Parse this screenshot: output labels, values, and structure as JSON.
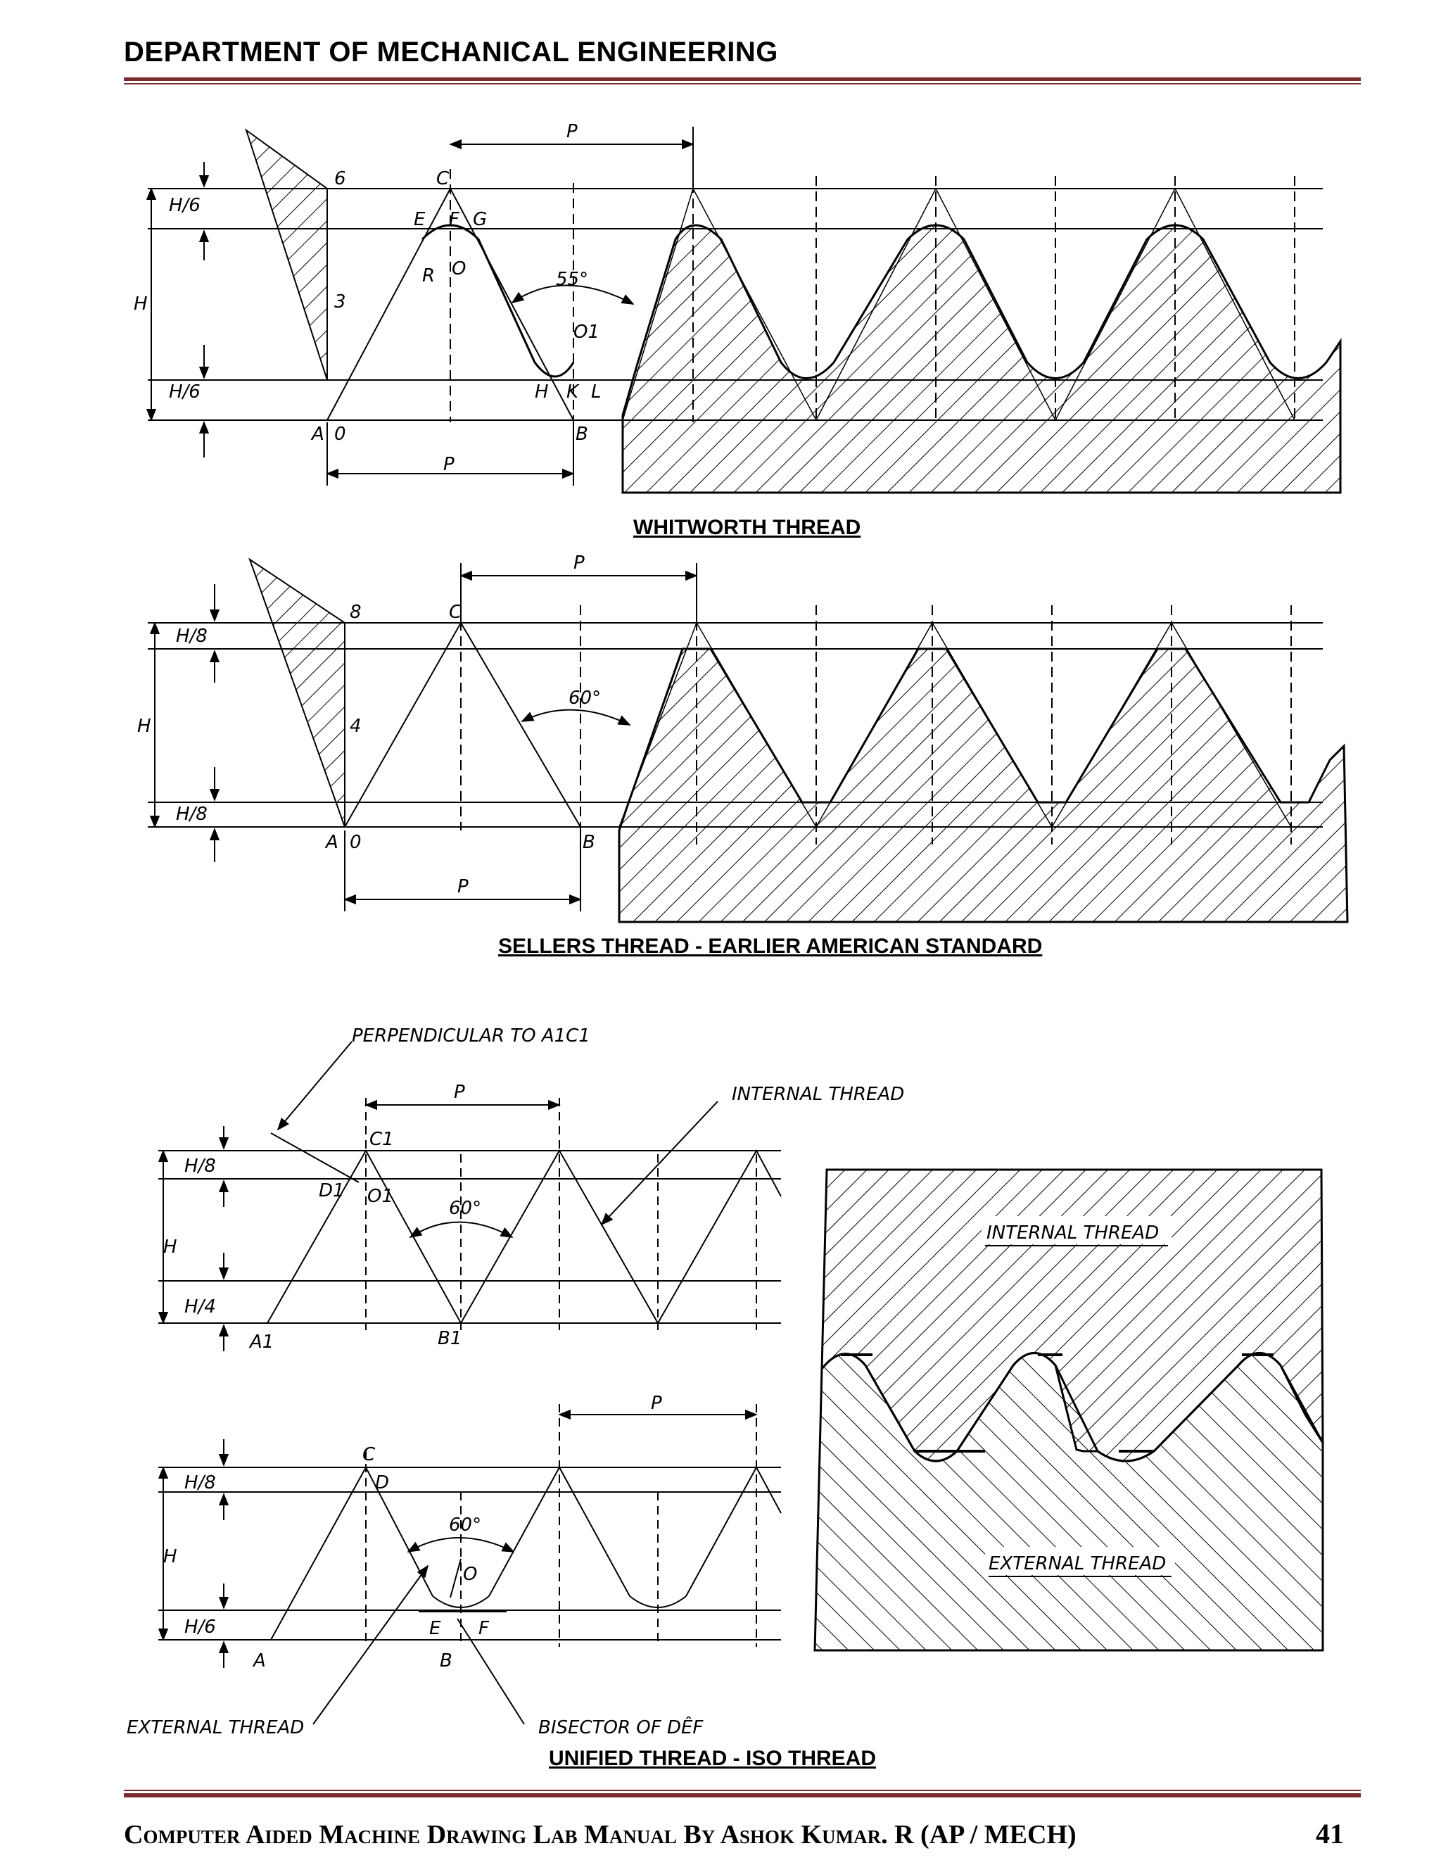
{
  "header": {
    "title": "DEPARTMENT OF MECHANICAL ENGINEERING"
  },
  "footer": {
    "text": "Computer Aided Machine Drawing Lab Manual By Ashok Kumar. R (AP / MECH)",
    "page_number": "41"
  },
  "colors": {
    "accent": "#7a2b2b"
  },
  "figures": {
    "whitworth": {
      "caption": "WHITWORTH THREAD",
      "labels": {
        "pitch_top": "P",
        "pitch_bottom": "P",
        "height": "H",
        "h6_top": "H/6",
        "h6_bottom": "H/6",
        "angle": "55°",
        "pt_c": "C",
        "pt_e": "E",
        "pt_f": "F",
        "pt_g": "G",
        "pt_o": "O",
        "pt_r": "R",
        "pt_o1": "O1",
        "pt_h": "H",
        "pt_k": "K",
        "pt_l": "L",
        "pt_a": "A",
        "pt_zero": "0",
        "pt_b": "B",
        "div_6": "6",
        "div_3": "3"
      }
    },
    "sellers": {
      "caption": "SELLERS THREAD - EARLIER AMERICAN STANDARD",
      "labels": {
        "pitch_top": "P",
        "pitch_bottom": "P",
        "height": "H",
        "h8_top": "H/8",
        "h8_bottom": "H/8",
        "angle": "60°",
        "pt_c": "C",
        "pt_a": "A",
        "pt_zero": "0",
        "pt_b": "B",
        "div_8": "8",
        "div_4": "4"
      }
    },
    "unified": {
      "caption": "UNIFIED THREAD - ISO THREAD",
      "labels": {
        "perpendicular": "PERPENDICULAR TO A1C1",
        "internal_thread": "INTERNAL THREAD",
        "internal_thread_section": "INTERNAL THREAD",
        "external_thread_section": "EXTERNAL THREAD",
        "external_thread": "EXTERNAL THREAD",
        "bisector": "BISECTOR OF DÊF",
        "pitch_1": "P",
        "pitch_2": "P",
        "height_1": "H",
        "height_2": "H",
        "h8_1": "H/8",
        "h4_1": "H/4",
        "h8_2": "H/8",
        "h6_2": "H/6",
        "angle_1": "60°",
        "angle_2": "60°",
        "pt_c1": "C1",
        "pt_d1": "D1",
        "pt_o1": "O1",
        "pt_a1": "A1",
        "pt_b1": "B1",
        "pt_c": "C",
        "pt_d": "D",
        "pt_o": "O",
        "pt_e": "E",
        "pt_f": "F",
        "pt_a": "A",
        "pt_b": "B"
      }
    }
  }
}
